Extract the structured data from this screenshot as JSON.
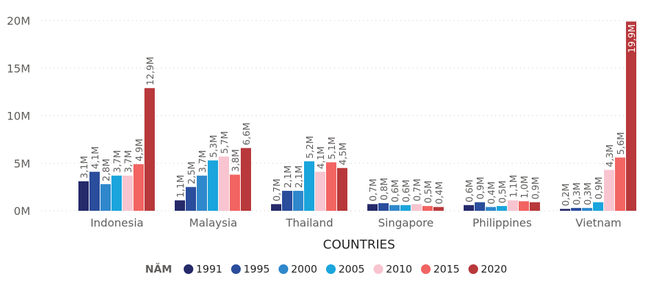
{
  "chart_data": {
    "type": "bar",
    "title": "",
    "xlabel": "COUNTRIES",
    "ylabel": "",
    "ylim": [
      0,
      20
    ],
    "y_ticks": [
      {
        "value": 0,
        "label": "0M"
      },
      {
        "value": 5,
        "label": "5M"
      },
      {
        "value": 10,
        "label": "10M"
      },
      {
        "value": 15,
        "label": "15M"
      },
      {
        "value": 20,
        "label": "20M"
      }
    ],
    "grid": true,
    "legend_title": "NĂM",
    "legend_position": "bottom",
    "categories": [
      "Indonesia",
      "Malaysia",
      "Thailand",
      "Singapore",
      "Philippines",
      "Vietnam"
    ],
    "series": [
      {
        "name": "1991",
        "color": "#252a6b",
        "values": [
          3.1,
          1.1,
          0.7,
          0.7,
          0.6,
          0.2
        ],
        "labels": [
          "3,1M",
          "1,1M",
          "0,7M",
          "0,7M",
          "0,6M",
          "0,2M"
        ]
      },
      {
        "name": "1995",
        "color": "#2a4d9c",
        "values": [
          4.1,
          2.5,
          2.1,
          0.8,
          0.9,
          0.3
        ],
        "labels": [
          "4,1M",
          "2,5M",
          "2,1M",
          "0,8M",
          "0,9M",
          "0,3M"
        ]
      },
      {
        "name": "2000",
        "color": "#2f88cc",
        "values": [
          2.8,
          3.7,
          2.1,
          0.6,
          0.4,
          0.3
        ],
        "labels": [
          "2,8M",
          "3,7M",
          "2,1M",
          "0,6M",
          "0,4M",
          "0,3M"
        ]
      },
      {
        "name": "2005",
        "color": "#1aa5dc",
        "values": [
          3.7,
          5.3,
          5.2,
          0.6,
          0.5,
          0.9
        ],
        "labels": [
          "3,7M",
          "5,3M",
          "5,2M",
          "0,6M",
          "0,5M",
          "0,9M"
        ]
      },
      {
        "name": "2010",
        "color": "#f8c4cf",
        "values": [
          3.7,
          5.7,
          4.1,
          0.7,
          1.1,
          4.3
        ],
        "labels": [
          "3,7M",
          "5,7M",
          "4,1M",
          "0,7M",
          "1,1M",
          "4,3M"
        ]
      },
      {
        "name": "2015",
        "color": "#f26461",
        "values": [
          4.9,
          3.8,
          5.1,
          0.5,
          1.0,
          5.6
        ],
        "labels": [
          "4,9M",
          "3,8M",
          "5,1M",
          "0,5M",
          "1,0M",
          "5,6M"
        ]
      },
      {
        "name": "2020",
        "color": "#b8383b",
        "values": [
          12.9,
          6.6,
          4.5,
          0.4,
          0.9,
          19.9
        ],
        "labels": [
          "12,9M",
          "6,6M",
          "4,5M",
          "0,4M",
          "0,9M",
          "19,9M"
        ]
      }
    ]
  }
}
